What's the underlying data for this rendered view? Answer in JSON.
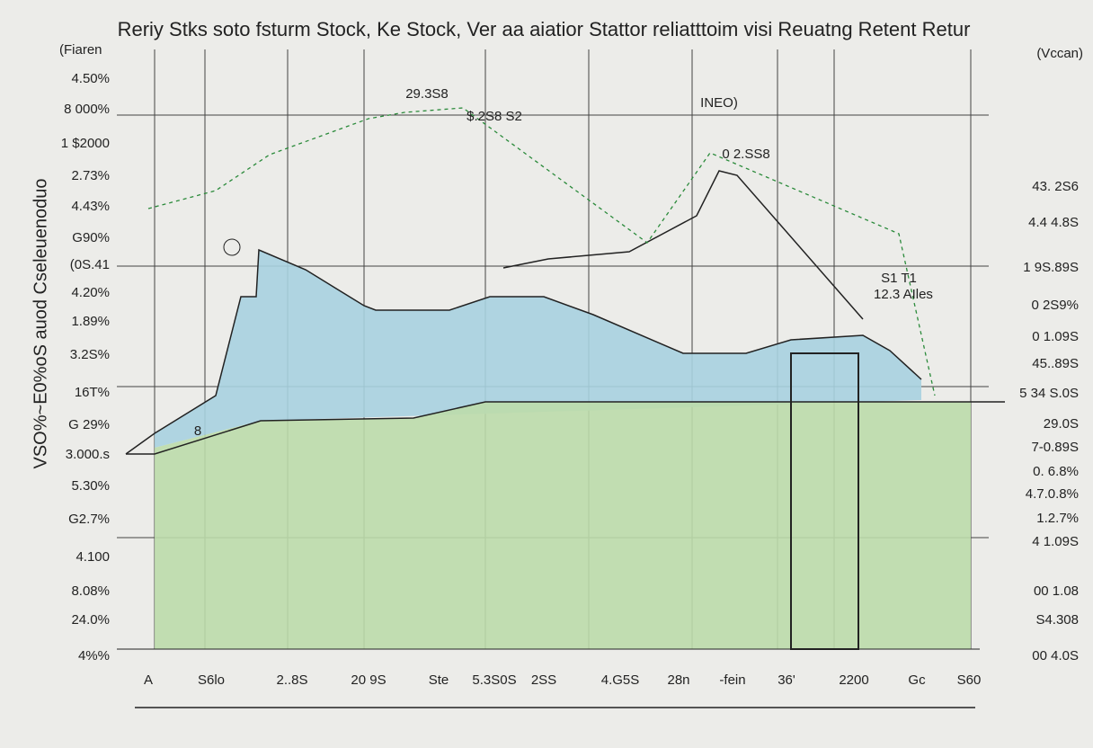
{
  "title": "Reriy Stks soto fsturm Stock, Ke Stock, Ver aa aiatior Stattor reliatttoim visi Reuatng Retent Retur",
  "left_axis_title": "(Fiaren",
  "right_axis_title": "(Vccan)",
  "vertical_label": "VSO%~E0%oS auod Cseleuenoduo",
  "left_labels": [
    "4.50%",
    "8 000%",
    "1 $2000",
    "2.73%",
    "4.43%",
    "G90%",
    "(0S.41",
    "4.20%",
    "1.89%",
    "3.2S%",
    "16T%",
    "G 29%",
    "3.000.s",
    "5.30%",
    "G2.7%",
    "4.100",
    "8.08%",
    "24.0%",
    "4%%"
  ],
  "right_labels": [
    "43. 2S6",
    "4.4 4.8S",
    "1 9S.89S",
    "0 2S9%",
    "0 1.09S",
    "45..89S",
    "5 34 S.0S",
    "29.0S",
    "7-0.89S",
    "0. 6.8%",
    "4.7.0.8%",
    "1.2.7%",
    "4 1.09S",
    "00 1.08",
    "S4.308",
    "00 4.0S"
  ],
  "x_labels": [
    "A",
    "S6lo",
    "2..8S",
    "20 9S",
    "Ste",
    "5.3S0S",
    "2SS",
    "4.G5S",
    "28n",
    "-fein",
    "36'",
    "2200",
    "Gc",
    "S60"
  ],
  "annotations": [
    "29.3S8",
    "$.2S8 S2",
    "INEO)",
    "0 2.SS8",
    "8",
    "S1 T1",
    "12.3 AIles"
  ]
}
